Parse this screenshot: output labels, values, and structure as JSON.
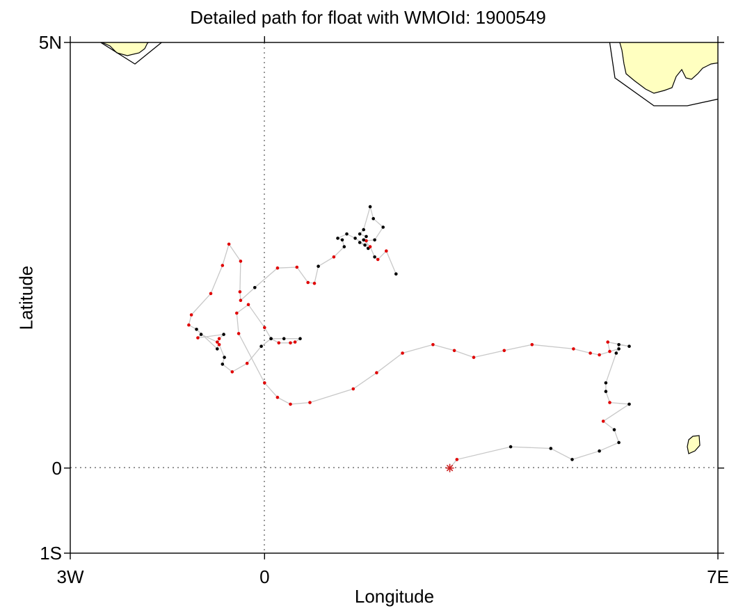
{
  "title": "Detailed path for float with WMOId: 1900549",
  "axes": {
    "xlabel": "Longitude",
    "ylabel": "Latitude",
    "x_ticks": [
      {
        "value": -3,
        "label": "3W"
      },
      {
        "value": 0,
        "label": "0"
      },
      {
        "value": 7,
        "label": "7E"
      }
    ],
    "y_ticks": [
      {
        "value": 5,
        "label": "5N"
      },
      {
        "value": 0,
        "label": "0"
      },
      {
        "value": -1,
        "label": "1S"
      }
    ],
    "xlim": [
      -3,
      7
    ],
    "ylim": [
      -1,
      5
    ]
  },
  "colors": {
    "land": "#ffffc0",
    "coast": "#000000",
    "track": "#c8c8c8",
    "point_red": "#e00000",
    "point_black": "#000000",
    "start_marker": "#cc2222"
  },
  "chart_data": {
    "type": "scatter",
    "reference_lines": [
      {
        "axis": "x",
        "value": 0
      },
      {
        "axis": "y",
        "value": 0
      }
    ],
    "start": {
      "lon": 2.86,
      "lat": 0.0
    },
    "track": [
      {
        "lon": 2.97,
        "lat": 0.1,
        "c": "r"
      },
      {
        "lon": 3.8,
        "lat": 0.25,
        "c": "k"
      },
      {
        "lon": 4.42,
        "lat": 0.23,
        "c": "k"
      },
      {
        "lon": 4.75,
        "lat": 0.1,
        "c": "k"
      },
      {
        "lon": 5.17,
        "lat": 0.2,
        "c": "k"
      },
      {
        "lon": 5.47,
        "lat": 0.3,
        "c": "k"
      },
      {
        "lon": 5.4,
        "lat": 0.45,
        "c": "k"
      },
      {
        "lon": 5.23,
        "lat": 0.55,
        "c": "r"
      },
      {
        "lon": 5.63,
        "lat": 0.75,
        "c": "k"
      },
      {
        "lon": 5.33,
        "lat": 0.77,
        "c": "r"
      },
      {
        "lon": 5.27,
        "lat": 0.9,
        "c": "k"
      },
      {
        "lon": 5.27,
        "lat": 1.0,
        "c": "k"
      },
      {
        "lon": 5.43,
        "lat": 1.35,
        "c": "k"
      },
      {
        "lon": 5.47,
        "lat": 1.45,
        "c": "k"
      },
      {
        "lon": 5.63,
        "lat": 1.43,
        "c": "k"
      },
      {
        "lon": 5.3,
        "lat": 1.48,
        "c": "r"
      },
      {
        "lon": 5.33,
        "lat": 1.37,
        "c": "r"
      },
      {
        "lon": 5.47,
        "lat": 1.4,
        "c": "k"
      },
      {
        "lon": 5.17,
        "lat": 1.33,
        "c": "r"
      },
      {
        "lon": 5.03,
        "lat": 1.35,
        "c": "r"
      },
      {
        "lon": 4.77,
        "lat": 1.4,
        "c": "r"
      },
      {
        "lon": 4.13,
        "lat": 1.45,
        "c": "r"
      },
      {
        "lon": 3.7,
        "lat": 1.38,
        "c": "r"
      },
      {
        "lon": 3.23,
        "lat": 1.3,
        "c": "r"
      },
      {
        "lon": 2.93,
        "lat": 1.38,
        "c": "r"
      },
      {
        "lon": 2.6,
        "lat": 1.45,
        "c": "r"
      },
      {
        "lon": 2.13,
        "lat": 1.35,
        "c": "r"
      },
      {
        "lon": 1.73,
        "lat": 1.12,
        "c": "r"
      },
      {
        "lon": 1.37,
        "lat": 0.93,
        "c": "r"
      },
      {
        "lon": 0.7,
        "lat": 0.77,
        "c": "r"
      },
      {
        "lon": 0.4,
        "lat": 0.75,
        "c": "r"
      },
      {
        "lon": 0.2,
        "lat": 0.83,
        "c": "r"
      },
      {
        "lon": 0.0,
        "lat": 1.0,
        "c": "r"
      },
      {
        "lon": -0.4,
        "lat": 1.58,
        "c": "r"
      },
      {
        "lon": -0.43,
        "lat": 1.82,
        "c": "r"
      },
      {
        "lon": -0.25,
        "lat": 1.92,
        "c": "r"
      },
      {
        "lon": 0.0,
        "lat": 1.65,
        "c": "r"
      },
      {
        "lon": 0.1,
        "lat": 1.52,
        "c": "k"
      },
      {
        "lon": 0.3,
        "lat": 1.52,
        "c": "k"
      },
      {
        "lon": 0.55,
        "lat": 1.52,
        "c": "k"
      },
      {
        "lon": 0.47,
        "lat": 1.48,
        "c": "r"
      },
      {
        "lon": 0.4,
        "lat": 1.47,
        "c": "r"
      },
      {
        "lon": 0.22,
        "lat": 1.47,
        "c": "r"
      },
      {
        "lon": 0.1,
        "lat": 1.52,
        "c": "k"
      },
      {
        "lon": -0.05,
        "lat": 1.43,
        "c": "k"
      },
      {
        "lon": -0.27,
        "lat": 1.23,
        "c": "r"
      },
      {
        "lon": -0.5,
        "lat": 1.13,
        "c": "r"
      },
      {
        "lon": -0.65,
        "lat": 1.22,
        "c": "k"
      },
      {
        "lon": -0.62,
        "lat": 1.3,
        "c": "k"
      },
      {
        "lon": -0.7,
        "lat": 1.45,
        "c": "r"
      },
      {
        "lon": -0.73,
        "lat": 1.48,
        "c": "r"
      },
      {
        "lon": -0.98,
        "lat": 1.57,
        "c": "k"
      },
      {
        "lon": -1.03,
        "lat": 1.53,
        "c": "r"
      },
      {
        "lon": -0.63,
        "lat": 1.57,
        "c": "k"
      },
      {
        "lon": -0.7,
        "lat": 1.52,
        "c": "r"
      },
      {
        "lon": -0.73,
        "lat": 1.4,
        "c": "k"
      },
      {
        "lon": -1.05,
        "lat": 1.63,
        "c": "k"
      },
      {
        "lon": -1.17,
        "lat": 1.68,
        "c": "r"
      },
      {
        "lon": -1.13,
        "lat": 1.8,
        "c": "r"
      },
      {
        "lon": -0.83,
        "lat": 2.05,
        "c": "r"
      },
      {
        "lon": -0.65,
        "lat": 2.38,
        "c": "r"
      },
      {
        "lon": -0.55,
        "lat": 2.63,
        "c": "r"
      },
      {
        "lon": -0.37,
        "lat": 2.43,
        "c": "r"
      },
      {
        "lon": -0.38,
        "lat": 2.07,
        "c": "r"
      },
      {
        "lon": -0.37,
        "lat": 1.97,
        "c": "r"
      },
      {
        "lon": -0.15,
        "lat": 2.12,
        "c": "k"
      },
      {
        "lon": 0.2,
        "lat": 2.35,
        "c": "r"
      },
      {
        "lon": 0.5,
        "lat": 2.36,
        "c": "r"
      },
      {
        "lon": 0.67,
        "lat": 2.18,
        "c": "r"
      },
      {
        "lon": 0.77,
        "lat": 2.17,
        "c": "r"
      },
      {
        "lon": 0.83,
        "lat": 2.37,
        "c": "k"
      },
      {
        "lon": 1.07,
        "lat": 2.48,
        "c": "r"
      },
      {
        "lon": 1.23,
        "lat": 2.6,
        "c": "k"
      },
      {
        "lon": 1.2,
        "lat": 2.68,
        "c": "k"
      },
      {
        "lon": 1.13,
        "lat": 2.7,
        "c": "k"
      },
      {
        "lon": 1.27,
        "lat": 2.75,
        "c": "k"
      },
      {
        "lon": 1.4,
        "lat": 2.7,
        "c": "k"
      },
      {
        "lon": 1.55,
        "lat": 2.62,
        "c": "k"
      },
      {
        "lon": 1.47,
        "lat": 2.65,
        "c": "k"
      },
      {
        "lon": 1.6,
        "lat": 2.58,
        "c": "k"
      },
      {
        "lon": 1.57,
        "lat": 2.67,
        "c": "r"
      },
      {
        "lon": 1.7,
        "lat": 2.68,
        "c": "k"
      },
      {
        "lon": 1.83,
        "lat": 2.83,
        "c": "k"
      },
      {
        "lon": 1.68,
        "lat": 2.93,
        "c": "k"
      },
      {
        "lon": 1.63,
        "lat": 3.07,
        "c": "k"
      },
      {
        "lon": 1.53,
        "lat": 2.8,
        "c": "k"
      },
      {
        "lon": 1.47,
        "lat": 2.75,
        "c": "k"
      },
      {
        "lon": 1.57,
        "lat": 2.72,
        "c": "k"
      },
      {
        "lon": 1.53,
        "lat": 2.68,
        "c": "k"
      },
      {
        "lon": 1.63,
        "lat": 2.6,
        "c": "r"
      },
      {
        "lon": 1.7,
        "lat": 2.48,
        "c": "k"
      },
      {
        "lon": 1.75,
        "lat": 2.45,
        "c": "r"
      },
      {
        "lon": 1.88,
        "lat": 2.55,
        "c": "r"
      },
      {
        "lon": 2.03,
        "lat": 2.28,
        "c": "k"
      }
    ]
  }
}
